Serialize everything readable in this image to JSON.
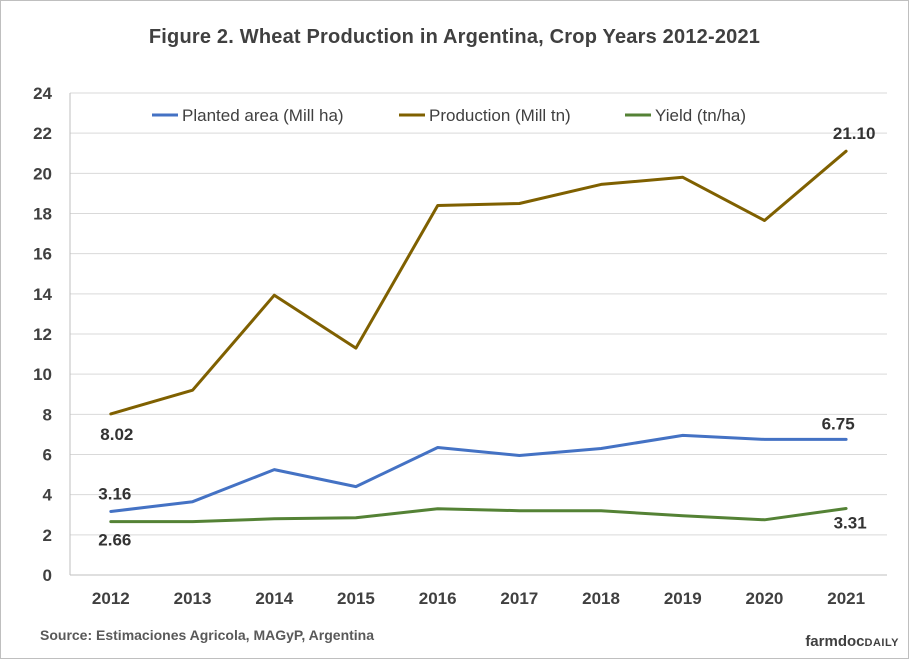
{
  "chart_data": {
    "type": "line",
    "title": "Figure  2. Wheat Production  in  Argentina,  Crop Years 2012-2021",
    "xlabel": "",
    "ylabel": "",
    "categories": [
      "2012",
      "2013",
      "2014",
      "2015",
      "2016",
      "2017",
      "2018",
      "2019",
      "2020",
      "2021"
    ],
    "ylim": [
      0,
      24
    ],
    "yticks": [
      "0",
      "2",
      "4",
      "6",
      "8",
      "10",
      "12",
      "14",
      "16",
      "18",
      "20",
      "22",
      "24"
    ],
    "grid": true,
    "legend_position": "top",
    "series": [
      {
        "name": "Planted area (Mill ha)",
        "color": "#4472c4",
        "values": [
          3.16,
          3.65,
          5.25,
          4.4,
          6.35,
          5.95,
          6.3,
          6.95,
          6.75,
          6.75
        ]
      },
      {
        "name": "Production (Mill tn)",
        "color": "#7f6000",
        "values": [
          8.02,
          9.2,
          13.93,
          11.3,
          18.4,
          18.5,
          19.45,
          19.8,
          17.65,
          21.1
        ]
      },
      {
        "name": "Yield (tn/ha)",
        "color": "#548235",
        "values": [
          2.66,
          2.66,
          2.8,
          2.85,
          3.3,
          3.2,
          3.2,
          2.95,
          2.75,
          3.31
        ]
      }
    ],
    "annotations": [
      {
        "text": "8.02",
        "series": 1,
        "index": 0
      },
      {
        "text": "21.10",
        "series": 1,
        "index": 9
      },
      {
        "text": "3.16",
        "series": 0,
        "index": 0
      },
      {
        "text": "6.75",
        "series": 0,
        "index": 9
      },
      {
        "text": "2.66",
        "series": 2,
        "index": 0
      },
      {
        "text": "3.31",
        "series": 2,
        "index": 9
      }
    ]
  },
  "source": "Source: Estimaciones Agricola, MAGyP, Argentina",
  "logo": {
    "part1": "farmdoc",
    "part2": "DAILY"
  }
}
